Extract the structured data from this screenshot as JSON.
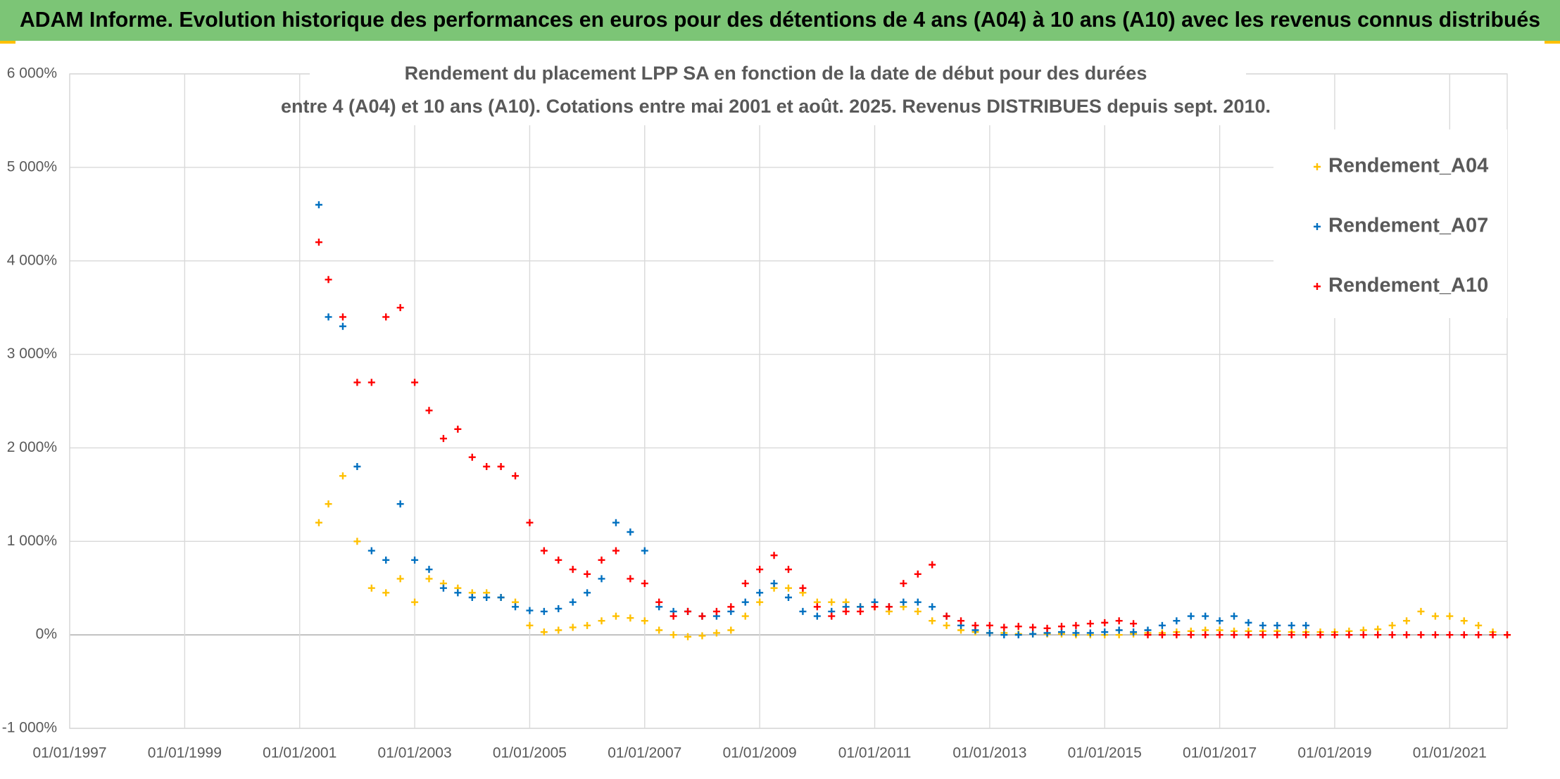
{
  "chart_data": {
    "type": "scatter",
    "title": "ADAM Informe. Evolution historique des performances en euros pour des détentions de 4 ans (A04) à 10 ans (A10) avec les revenus connus distribués",
    "subtitle": [
      "Rendement du placement LPP SA en fonction de la date de début pour des durées",
      "entre 4 (A04) et 10 ans (A10). Cotations entre mai 2001 et août. 2025. Revenus DISTRIBUES depuis sept. 2010."
    ],
    "xlim": [
      "01/01/1997",
      "01/01/2022"
    ],
    "xticks": [
      "01/01/1997",
      "01/01/1999",
      "01/01/2001",
      "01/01/2003",
      "01/01/2005",
      "01/01/2007",
      "01/01/2009",
      "01/01/2011",
      "01/01/2013",
      "01/01/2015",
      "01/01/2017",
      "01/01/2019",
      "01/01/2021"
    ],
    "ylim": [
      -1000,
      6000
    ],
    "yticks": [
      {
        "value": -1000,
        "label": "-1 000%"
      },
      {
        "value": 0,
        "label": "0%"
      },
      {
        "value": 1000,
        "label": "1 000%"
      },
      {
        "value": 2000,
        "label": "2 000%"
      },
      {
        "value": 3000,
        "label": "3 000%"
      },
      {
        "value": 4000,
        "label": "4 000%"
      },
      {
        "value": 5000,
        "label": "5 000%"
      },
      {
        "value": 6000,
        "label": "6 000%"
      }
    ],
    "grid": true,
    "legend_position": "upper right",
    "x": [
      "01/05/2001",
      "01/07/2001",
      "01/10/2001",
      "01/01/2002",
      "01/04/2002",
      "01/07/2002",
      "01/10/2002",
      "01/01/2003",
      "01/04/2003",
      "01/07/2003",
      "01/10/2003",
      "01/01/2004",
      "01/04/2004",
      "01/07/2004",
      "01/10/2004",
      "01/01/2005",
      "01/04/2005",
      "01/07/2005",
      "01/10/2005",
      "01/01/2006",
      "01/04/2006",
      "01/07/2006",
      "01/10/2006",
      "01/01/2007",
      "01/04/2007",
      "01/07/2007",
      "01/10/2007",
      "01/01/2008",
      "01/04/2008",
      "01/07/2008",
      "01/10/2008",
      "01/01/2009",
      "01/04/2009",
      "01/07/2009",
      "01/10/2009",
      "01/01/2010",
      "01/04/2010",
      "01/07/2010",
      "01/10/2010",
      "01/01/2011",
      "01/04/2011",
      "01/07/2011",
      "01/10/2011",
      "01/01/2012",
      "01/04/2012",
      "01/07/2012",
      "01/10/2012",
      "01/01/2013",
      "01/04/2013",
      "01/07/2013",
      "01/10/2013",
      "01/01/2014",
      "01/04/2014",
      "01/07/2014",
      "01/10/2014",
      "01/01/2015",
      "01/04/2015",
      "01/07/2015",
      "01/10/2015",
      "01/01/2016",
      "01/04/2016",
      "01/07/2016",
      "01/10/2016",
      "01/01/2017",
      "01/04/2017",
      "01/07/2017",
      "01/10/2017",
      "01/01/2018",
      "01/04/2018",
      "01/07/2018",
      "01/10/2018",
      "01/01/2019",
      "01/04/2019",
      "01/07/2019",
      "01/10/2019",
      "01/01/2020",
      "01/04/2020",
      "01/07/2020",
      "01/10/2020",
      "01/01/2021",
      "01/04/2021",
      "01/07/2021",
      "01/10/2021",
      "01/01/2022"
    ],
    "series": [
      {
        "name": "Rendement_A04",
        "color": "#ffc000",
        "values": [
          1200,
          1400,
          1700,
          1000,
          500,
          450,
          600,
          350,
          600,
          550,
          500,
          450,
          450,
          400,
          350,
          100,
          30,
          50,
          80,
          100,
          150,
          200,
          180,
          150,
          50,
          0,
          -20,
          -10,
          20,
          50,
          200,
          350,
          500,
          500,
          450,
          350,
          350,
          350,
          300,
          300,
          250,
          300,
          250,
          150,
          100,
          50,
          30,
          20,
          20,
          10,
          10,
          10,
          10,
          0,
          0,
          0,
          0,
          10,
          20,
          20,
          30,
          40,
          50,
          50,
          40,
          40,
          40,
          40,
          30,
          30,
          30,
          30,
          40,
          50,
          60,
          100,
          150,
          250,
          200,
          200,
          150,
          100,
          30,
          0
        ]
      },
      {
        "name": "Rendement_A07",
        "color": "#0070c0",
        "values": [
          4600,
          3400,
          3300,
          1800,
          900,
          800,
          1400,
          800,
          700,
          500,
          450,
          400,
          400,
          400,
          300,
          260,
          250,
          280,
          350,
          450,
          600,
          1200,
          1100,
          900,
          300,
          250,
          250,
          200,
          200,
          250,
          350,
          450,
          550,
          400,
          250,
          200,
          250,
          300,
          300,
          350,
          300,
          350,
          350,
          300,
          200,
          100,
          50,
          20,
          0,
          0,
          10,
          20,
          30,
          20,
          20,
          30,
          50,
          30,
          50,
          100,
          150,
          200,
          200,
          150,
          200,
          130,
          100,
          100,
          100,
          100,
          null,
          null,
          null,
          null,
          null,
          null,
          null,
          null,
          null,
          null,
          null,
          null,
          null,
          null
        ]
      },
      {
        "name": "Rendement_A10",
        "color": "#ff0000",
        "values": [
          4200,
          3800,
          3400,
          2700,
          2700,
          3400,
          3500,
          2700,
          2400,
          2100,
          2200,
          1900,
          1800,
          1800,
          1700,
          1200,
          900,
          800,
          700,
          650,
          800,
          900,
          600,
          550,
          350,
          200,
          250,
          200,
          250,
          300,
          550,
          700,
          850,
          700,
          500,
          300,
          200,
          250,
          250,
          300,
          300,
          550,
          650,
          750,
          200,
          150,
          100,
          100,
          80,
          90,
          80,
          70,
          90,
          100,
          120,
          130,
          150,
          120,
          0,
          0,
          0,
          0,
          0,
          0,
          0,
          0,
          0,
          0,
          0,
          0,
          0,
          0,
          0,
          0,
          0,
          0,
          0,
          0,
          0,
          0,
          0,
          0,
          0,
          0
        ]
      }
    ]
  }
}
